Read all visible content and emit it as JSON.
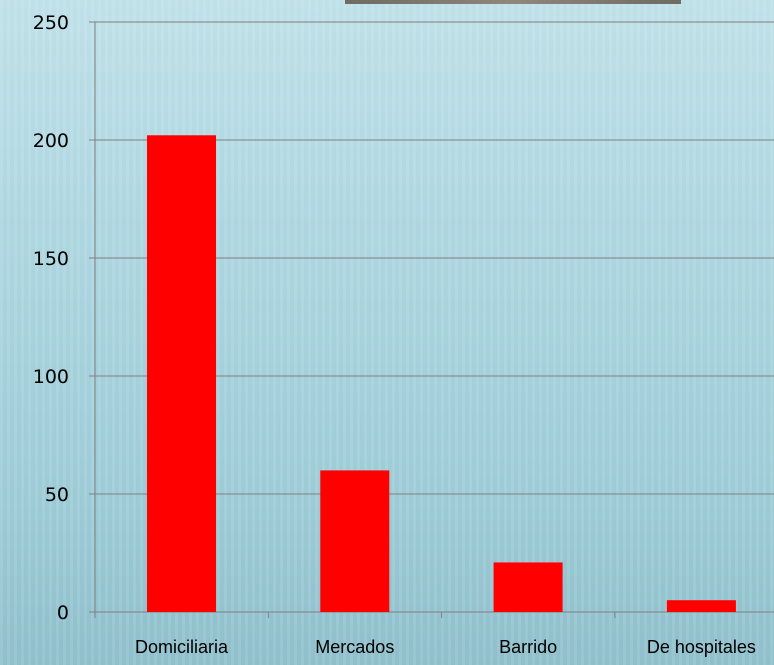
{
  "chart_data": {
    "type": "bar",
    "categories": [
      "Domiciliaria",
      "Mercados",
      "Barrido",
      "De hospitales"
    ],
    "values": [
      202,
      60,
      21,
      5
    ],
    "title": "",
    "xlabel": "",
    "ylabel": "",
    "ylim": [
      0,
      250
    ],
    "yticks": [
      0,
      50,
      100,
      150,
      200,
      250
    ],
    "grid": true,
    "legend": "none",
    "bar_color": "#ff0000",
    "gridline_color": "#808080"
  }
}
